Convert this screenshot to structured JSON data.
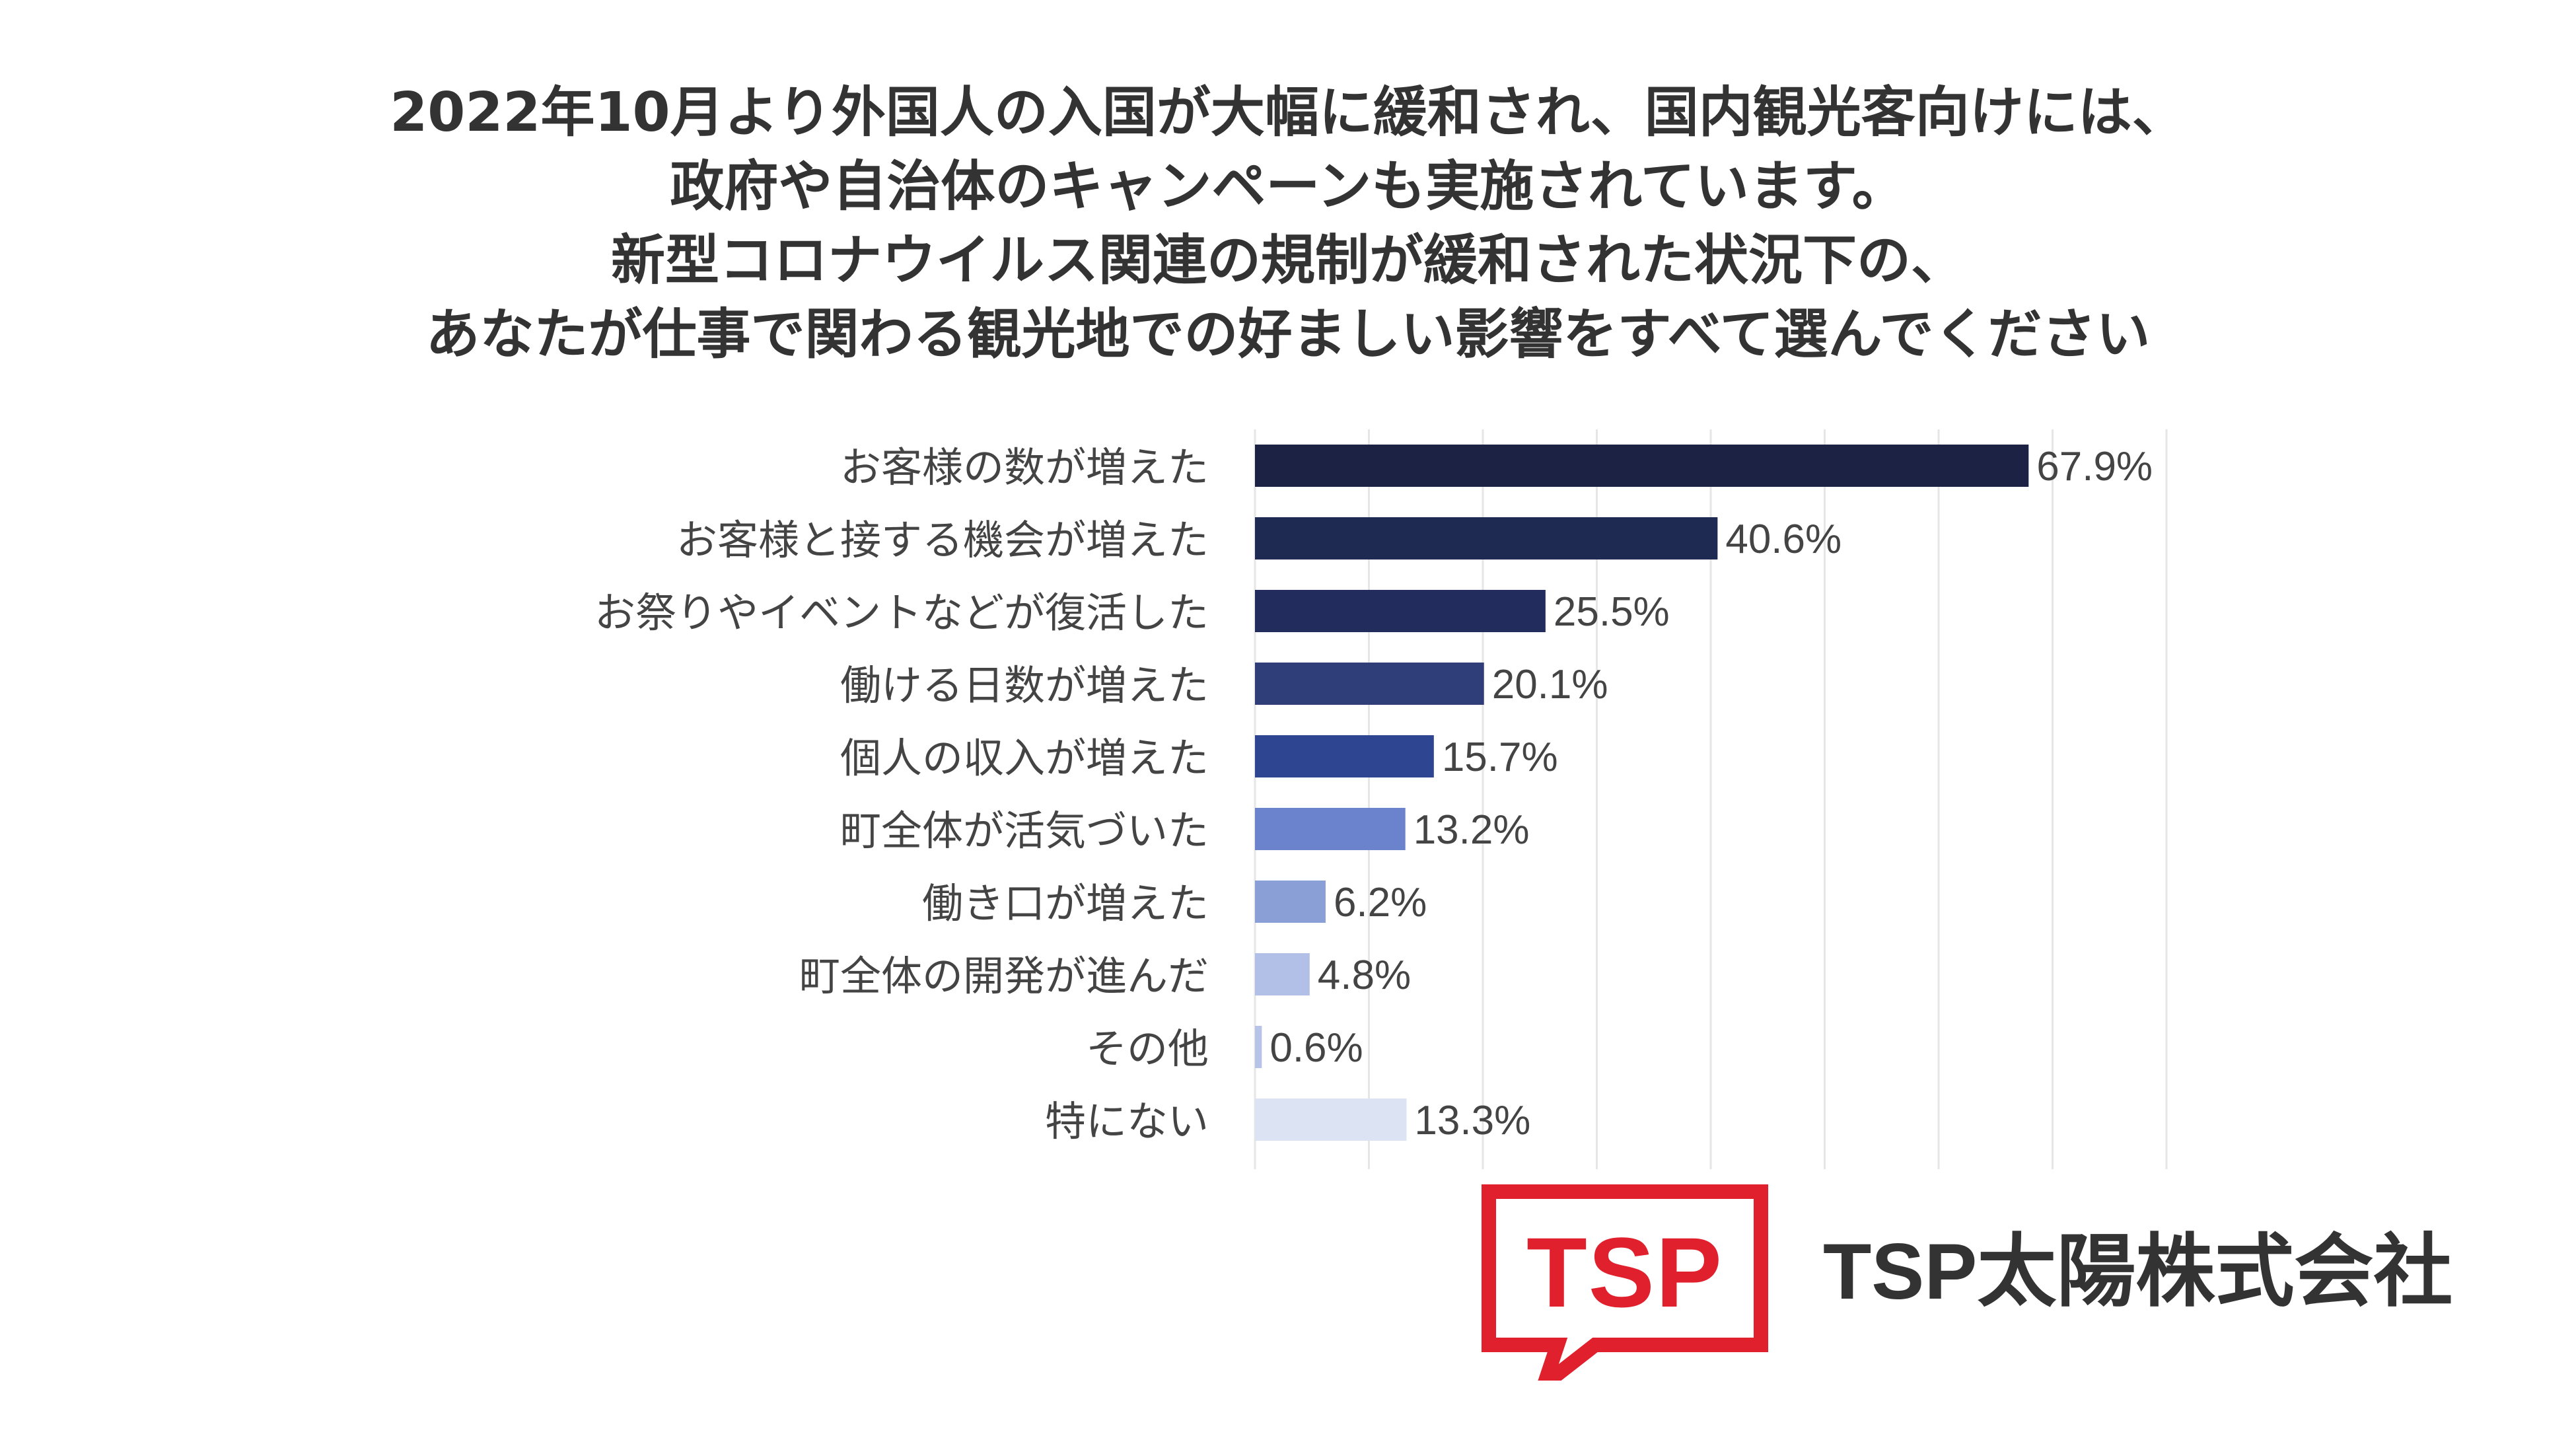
{
  "chart_data": {
    "type": "bar",
    "orientation": "horizontal",
    "title_lines": [
      "2022年10月より外国人の入国が大幅に緩和され、国内観光客向けには、",
      "政府や自治体のキャンペーンも実施されています。",
      "新型コロナウイルス関連の規制が緩和された状況下の、",
      "あなたが仕事で関わる観光地での好ましい影響をすべて選んでください"
    ],
    "categories": [
      "お客様の数が増えた",
      "お客様と接する機会が増えた",
      "お祭りやイベントなどが復活した",
      "働ける日数が増えた",
      "個人の収入が増えた",
      "町全体が活気づいた",
      "働き口が増えた",
      "町全体の開発が進んだ",
      "その他",
      "特にない"
    ],
    "values": [
      67.9,
      40.6,
      25.5,
      20.1,
      15.7,
      13.2,
      6.2,
      4.8,
      0.6,
      13.3
    ],
    "value_labels": [
      "67.9%",
      "40.6%",
      "25.5%",
      "20.1%",
      "15.7%",
      "13.2%",
      "6.2%",
      "4.8%",
      "0.6%",
      "13.3%"
    ],
    "bar_colors": [
      "#1b2244",
      "#1f2a52",
      "#222d5e",
      "#2f3e78",
      "#2e4592",
      "#6a83cc",
      "#8a9fd6",
      "#b2bfe6",
      "#b7c4e8",
      "#dce3f2"
    ],
    "xlim": [
      0,
      80
    ],
    "grid": true,
    "legend": "none"
  },
  "logo": {
    "mark_text": "TSP",
    "company_name": "TSP太陽株式会社",
    "brand_color": "#e0212d"
  }
}
